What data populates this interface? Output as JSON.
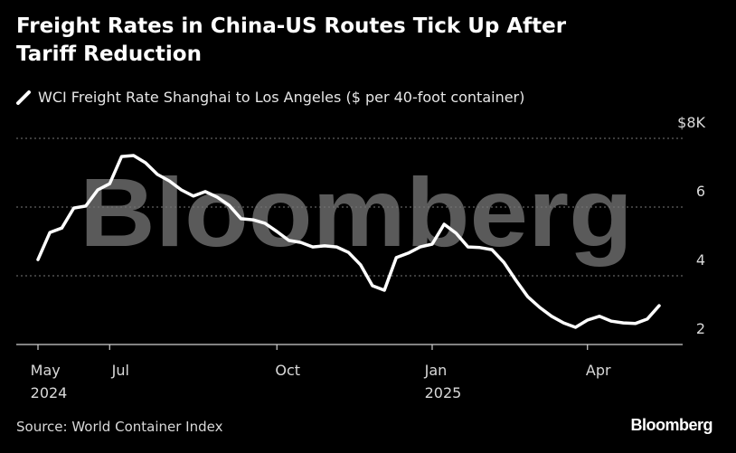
{
  "chart_data": {
    "type": "line",
    "title": "Freight Rates in China-US Routes Tick Up After Tariff Reduction",
    "source": "Source: World Container Index",
    "logo": "Bloomberg",
    "watermark": "Bloomberg",
    "categories": [
      "May\n2024",
      null,
      null,
      null,
      null,
      null,
      "Jul",
      null,
      null,
      null,
      null,
      null,
      null,
      null,
      null,
      null,
      null,
      null,
      null,
      null,
      "Oct",
      null,
      null,
      null,
      null,
      null,
      null,
      null,
      null,
      null,
      null,
      null,
      null,
      "Jan\n2025",
      null,
      null,
      null,
      null,
      null,
      null,
      null,
      null,
      null,
      null,
      null,
      null,
      "Apr",
      null,
      null,
      null,
      null,
      null,
      null
    ],
    "series": [
      {
        "name": "WCI Freight Rate Shanghai to Los Angeles ($ per 40-foot container)",
        "color": "#ffffff",
        "values": [
          4.47,
          5.26,
          5.39,
          5.97,
          6.03,
          6.5,
          6.68,
          7.47,
          7.5,
          7.29,
          6.95,
          6.76,
          6.5,
          6.32,
          6.45,
          6.29,
          6.05,
          5.66,
          5.63,
          5.53,
          5.29,
          5.03,
          4.97,
          4.84,
          4.87,
          4.84,
          4.68,
          4.32,
          3.71,
          3.58,
          4.53,
          4.66,
          4.84,
          4.92,
          5.5,
          5.24,
          4.84,
          4.82,
          4.76,
          4.39,
          3.87,
          3.39,
          3.08,
          2.82,
          2.63,
          2.5,
          2.71,
          2.82,
          2.68,
          2.63,
          2.61,
          2.74,
          3.13
        ]
      }
    ],
    "ylim": [
      2,
      8
    ],
    "yticks": [
      2,
      4,
      6,
      {
        "value": 8,
        "label": "$8K"
      }
    ],
    "grid": true
  }
}
